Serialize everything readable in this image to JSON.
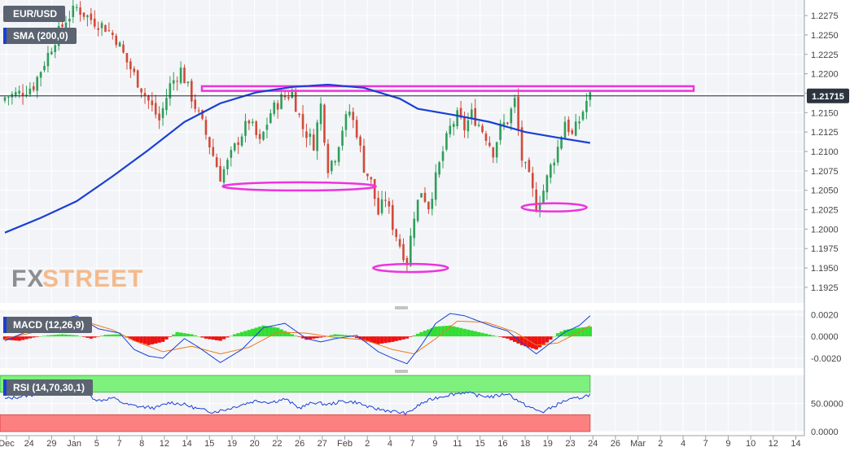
{
  "panels": {
    "price_label": "EUR/USD",
    "sma_label": "SMA (200,0)",
    "macd_label": "MACD (12,26,9)",
    "rsi_label": "RSI (14,70,30,1)",
    "watermark_fx": "FX",
    "watermark_street": "STREET",
    "current_price": "1.21715"
  },
  "colors": {
    "up_candle": "#2e9e5b",
    "down_candle": "#d24a3a",
    "sma": "#1a3fd6",
    "resistance": "#ee33dd",
    "macd_line": "#1a3fd6",
    "signal_line": "#f07a1a",
    "hist_positive": "#33dd33",
    "hist_negative": "#ee1111",
    "rsi_overbought_zone": "#7ef07e",
    "rsi_oversold_zone": "#fd8080",
    "rsi_line": "#1a3fd6",
    "tag_sma": "#1a3fd6",
    "tag_macd": "#1a3fd6",
    "tag_rsi": "#1a3fd6"
  },
  "chart_data": [
    {
      "type": "candlestick",
      "name": "price",
      "y_ticks": [
        "1.2275",
        "1.2250",
        "1.2225",
        "1.2200",
        "1.2175",
        "1.2150",
        "1.2125",
        "1.2100",
        "1.2075",
        "1.2050",
        "1.2025",
        "1.2000",
        "1.1975",
        "1.1950",
        "1.1925"
      ],
      "ylim": [
        1.1905,
        1.2295
      ],
      "x_ticks": [
        "Dec",
        "24",
        "29",
        "Jan",
        "5",
        "7",
        "8",
        "12",
        "14",
        "15",
        "19",
        "20",
        "22",
        "26",
        "27",
        "Feb",
        "2",
        "4",
        "7",
        "9",
        "11",
        "15",
        "16",
        "18",
        "19",
        "23",
        "24",
        "26",
        "Mar",
        "2",
        "4",
        "7",
        "9",
        "10",
        "12",
        "14"
      ],
      "close_path": [
        [
          0,
          1.217
        ],
        [
          4,
          1.2175
        ],
        [
          8,
          1.2185
        ],
        [
          11,
          1.2215
        ],
        [
          14,
          1.2245
        ],
        [
          17,
          1.227
        ],
        [
          20,
          1.2285
        ],
        [
          24,
          1.227
        ],
        [
          28,
          1.226
        ],
        [
          31,
          1.2245
        ],
        [
          34,
          1.2215
        ],
        [
          37,
          1.219
        ],
        [
          40,
          1.2165
        ],
        [
          43,
          1.214
        ],
        [
          46,
          1.2185
        ],
        [
          49,
          1.2205
        ],
        [
          52,
          1.217
        ],
        [
          55,
          1.2135
        ],
        [
          58,
          1.2095
        ],
        [
          60,
          1.2068
        ],
        [
          62,
          1.2085
        ],
        [
          65,
          1.2115
        ],
        [
          68,
          1.214
        ],
        [
          71,
          1.211
        ],
        [
          74,
          1.215
        ],
        [
          77,
          1.2168
        ],
        [
          80,
          1.2175
        ],
        [
          83,
          1.213
        ],
        [
          86,
          1.211
        ],
        [
          88,
          1.216
        ],
        [
          90,
          1.208
        ],
        [
          92,
          1.2095
        ],
        [
          94,
          1.213
        ],
        [
          96,
          1.2152
        ],
        [
          98,
          1.2125
        ],
        [
          100,
          1.208
        ],
        [
          102,
          1.206
        ],
        [
          104,
          1.202
        ],
        [
          106,
          1.204
        ],
        [
          108,
          1.2005
        ],
        [
          110,
          1.198
        ],
        [
          112,
          1.1958
        ],
        [
          114,
          1.202
        ],
        [
          116,
          1.205
        ],
        [
          118,
          1.203
        ],
        [
          120,
          1.2065
        ],
        [
          122,
          1.21
        ],
        [
          124,
          1.213
        ],
        [
          126,
          1.2145
        ],
        [
          128,
          1.213
        ],
        [
          130,
          1.2148
        ],
        [
          132,
          1.2135
        ],
        [
          134,
          1.212
        ],
        [
          136,
          1.21
        ],
        [
          138,
          1.213
        ],
        [
          140,
          1.214
        ],
        [
          142,
          1.2165
        ],
        [
          144,
          1.209
        ],
        [
          146,
          1.2065
        ],
        [
          148,
          1.203
        ],
        [
          150,
          1.205
        ],
        [
          152,
          1.208
        ],
        [
          154,
          1.2105
        ],
        [
          156,
          1.214
        ],
        [
          158,
          1.212
        ],
        [
          160,
          1.214
        ],
        [
          162,
          1.2165
        ],
        [
          163,
          1.2171
        ]
      ],
      "sma_200": [
        [
          0,
          1.19955
        ],
        [
          10,
          1.20145
        ],
        [
          20,
          1.2036
        ],
        [
          30,
          1.2068
        ],
        [
          40,
          1.2102
        ],
        [
          50,
          1.2138
        ],
        [
          60,
          1.2162
        ],
        [
          70,
          1.2176
        ],
        [
          80,
          1.2183
        ],
        [
          90,
          1.2186
        ],
        [
          100,
          1.2182
        ],
        [
          110,
          1.2168
        ],
        [
          115,
          1.2155
        ],
        [
          125,
          1.2147
        ],
        [
          135,
          1.2138
        ],
        [
          145,
          1.2125
        ],
        [
          155,
          1.2117
        ],
        [
          163,
          1.2111
        ]
      ],
      "current_price": 1.21715,
      "resistance_band": [
        1.2178,
        1.2184
      ],
      "support_ellipses": [
        {
          "x": 82,
          "y": 1.2055
        },
        {
          "x": 113,
          "y": 1.195
        },
        {
          "x": 153,
          "y": 1.2028
        }
      ]
    },
    {
      "type": "macd",
      "name": "MACD (12,26,9)",
      "y_ticks": [
        "0.0020",
        "0.0000",
        "-0.0020"
      ],
      "ylim": [
        -0.0029,
        0.0024
      ],
      "histogram": [
        [
          0,
          -0.0003
        ],
        [
          4,
          -0.0004
        ],
        [
          8,
          -0.0001
        ],
        [
          12,
          0.0001
        ],
        [
          16,
          0.0002
        ],
        [
          20,
          0.0001
        ],
        [
          24,
          -0.0002
        ],
        [
          28,
          0.00015
        ],
        [
          32,
          0.0002
        ],
        [
          36,
          -0.0004
        ],
        [
          40,
          -0.0008
        ],
        [
          44,
          -0.0005
        ],
        [
          48,
          0.0004
        ],
        [
          52,
          0.0002
        ],
        [
          56,
          -0.0002
        ],
        [
          60,
          -0.0004
        ],
        [
          64,
          0.0002
        ],
        [
          68,
          0.0006
        ],
        [
          72,
          0.001
        ],
        [
          76,
          0.0008
        ],
        [
          80,
          0.0002
        ],
        [
          84,
          -0.0003
        ],
        [
          88,
          -0.0001
        ],
        [
          92,
          0.0002
        ],
        [
          96,
          0.0001
        ],
        [
          100,
          -0.0004
        ],
        [
          104,
          -0.0007
        ],
        [
          108,
          -0.0005
        ],
        [
          112,
          -0.0002
        ],
        [
          116,
          0.0004
        ],
        [
          120,
          0.0009
        ],
        [
          124,
          0.001
        ],
        [
          128,
          0.0007
        ],
        [
          132,
          0.0004
        ],
        [
          136,
          0.0001
        ],
        [
          140,
          -0.0002
        ],
        [
          144,
          -0.0008
        ],
        [
          148,
          -0.0012
        ],
        [
          150,
          -0.0008
        ],
        [
          152,
          -0.0003
        ],
        [
          154,
          0.0003
        ],
        [
          156,
          0.0006
        ],
        [
          160,
          0.0008
        ],
        [
          163,
          0.0009
        ]
      ],
      "macd_line": [
        [
          0,
          -0.0004
        ],
        [
          8,
          0.0007
        ],
        [
          16,
          0.0016
        ],
        [
          20,
          0.0019
        ],
        [
          26,
          0.0007
        ],
        [
          32,
          0.0003
        ],
        [
          36,
          -0.0012
        ],
        [
          40,
          -0.0018
        ],
        [
          44,
          -0.002
        ],
        [
          50,
          -0.0002
        ],
        [
          54,
          -0.001
        ],
        [
          60,
          -0.0024
        ],
        [
          66,
          -0.0012
        ],
        [
          72,
          0.0008
        ],
        [
          78,
          0.0012
        ],
        [
          84,
          -0.0002
        ],
        [
          88,
          -0.0005
        ],
        [
          92,
          -0.0002
        ],
        [
          98,
          0.0001
        ],
        [
          104,
          -0.0014
        ],
        [
          108,
          -0.002
        ],
        [
          112,
          -0.0025
        ],
        [
          116,
          -0.0008
        ],
        [
          120,
          0.0012
        ],
        [
          124,
          0.0021
        ],
        [
          128,
          0.0019
        ],
        [
          132,
          0.0014
        ],
        [
          136,
          0.0009
        ],
        [
          140,
          0.0005
        ],
        [
          144,
          -0.0006
        ],
        [
          148,
          -0.0016
        ],
        [
          152,
          -0.0006
        ],
        [
          156,
          0.0004
        ],
        [
          160,
          0.001
        ],
        [
          163,
          0.0019
        ]
      ],
      "signal_line": [
        [
          0,
          -0.0002
        ],
        [
          10,
          0.0005
        ],
        [
          18,
          0.0014
        ],
        [
          24,
          0.0012
        ],
        [
          30,
          0.0006
        ],
        [
          36,
          -0.0004
        ],
        [
          44,
          -0.0014
        ],
        [
          52,
          -0.0009
        ],
        [
          60,
          -0.0016
        ],
        [
          68,
          -0.001
        ],
        [
          76,
          0.0004
        ],
        [
          84,
          0.0003
        ],
        [
          92,
          -0.0001
        ],
        [
          100,
          -0.0003
        ],
        [
          108,
          -0.0012
        ],
        [
          114,
          -0.0016
        ],
        [
          120,
          -0.0002
        ],
        [
          126,
          0.0014
        ],
        [
          134,
          0.0013
        ],
        [
          142,
          0.0004
        ],
        [
          148,
          -0.0008
        ],
        [
          154,
          -0.0006
        ],
        [
          160,
          0.0004
        ],
        [
          163,
          0.001
        ]
      ]
    },
    {
      "type": "rsi",
      "name": "RSI (14,70,30,1)",
      "y_ticks": [
        "50.0000",
        "0.0000"
      ],
      "ylim": [
        0,
        100
      ],
      "overbought": 70,
      "oversold": 30,
      "rsi": [
        [
          0,
          58
        ],
        [
          6,
          64
        ],
        [
          12,
          69
        ],
        [
          18,
          66
        ],
        [
          22,
          70
        ],
        [
          26,
          55
        ],
        [
          30,
          60
        ],
        [
          34,
          48
        ],
        [
          38,
          44
        ],
        [
          42,
          42
        ],
        [
          46,
          52
        ],
        [
          50,
          48
        ],
        [
          54,
          40
        ],
        [
          58,
          35
        ],
        [
          62,
          40
        ],
        [
          66,
          48
        ],
        [
          70,
          55
        ],
        [
          74,
          52
        ],
        [
          78,
          58
        ],
        [
          82,
          42
        ],
        [
          86,
          52
        ],
        [
          90,
          48
        ],
        [
          94,
          54
        ],
        [
          98,
          52
        ],
        [
          102,
          42
        ],
        [
          106,
          38
        ],
        [
          110,
          34
        ],
        [
          112,
          32
        ],
        [
          116,
          50
        ],
        [
          120,
          60
        ],
        [
          124,
          66
        ],
        [
          128,
          70
        ],
        [
          132,
          64
        ],
        [
          136,
          62
        ],
        [
          140,
          68
        ],
        [
          144,
          50
        ],
        [
          148,
          38
        ],
        [
          150,
          35
        ],
        [
          152,
          42
        ],
        [
          156,
          55
        ],
        [
          160,
          60
        ],
        [
          163,
          66
        ]
      ]
    }
  ]
}
